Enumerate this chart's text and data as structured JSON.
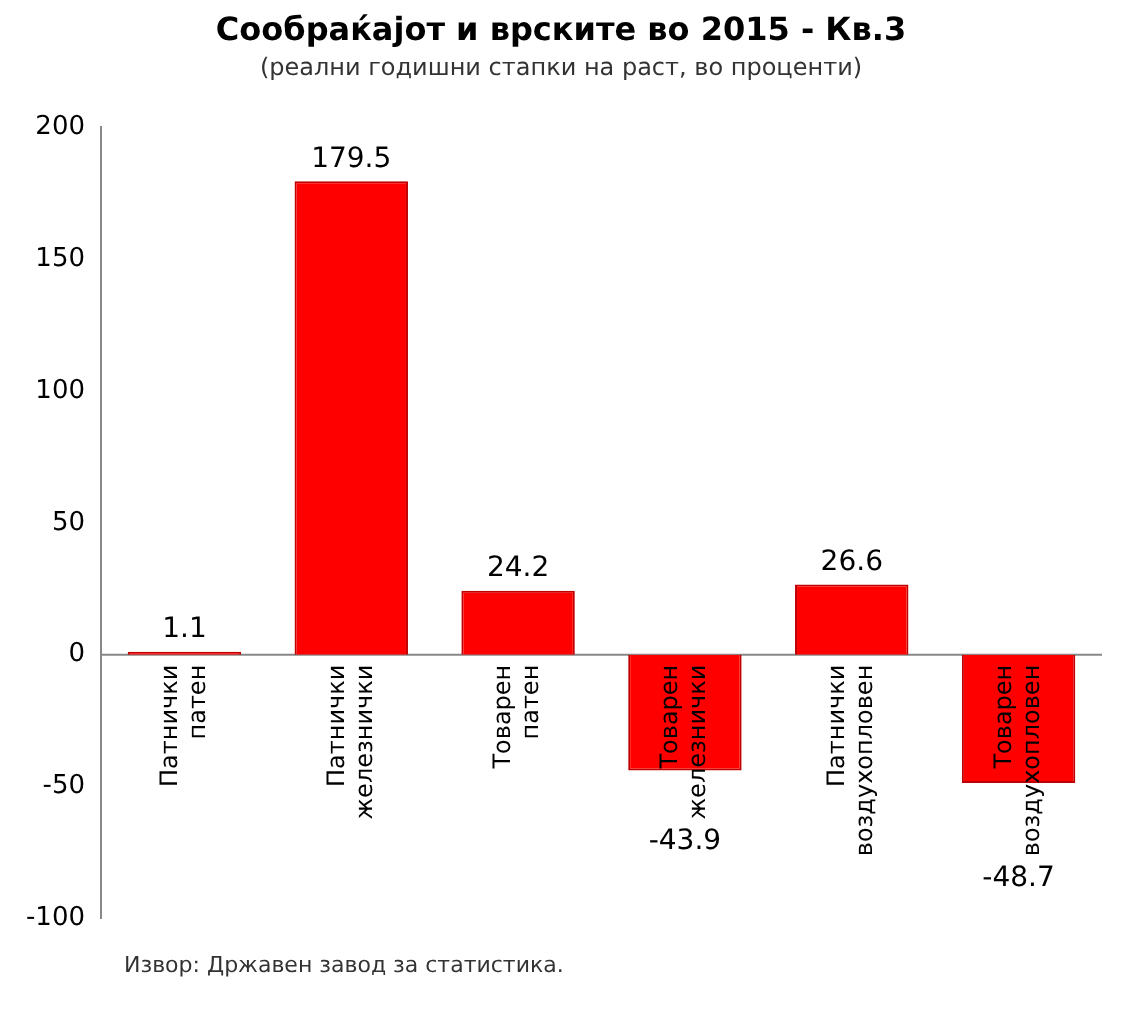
{
  "chart_data": {
    "type": "bar",
    "title": "Сообраќајот и врските во 2015 - Кв.3",
    "subtitle": "(реални годишни стапки на раст, во проценти)",
    "categories": [
      "Патнички патен",
      "Патнички железнички",
      "Товарен патен",
      "Товарен железнички",
      "Патнички воздухопловен",
      "Товарен воздухопловен"
    ],
    "values": [
      1.1,
      179.5,
      24.2,
      -43.9,
      26.6,
      -48.7
    ],
    "color": "#ff0000",
    "ylim": [
      -100,
      200
    ],
    "yticks": [
      -100,
      -50,
      0,
      50,
      100,
      150,
      200
    ],
    "grid": false,
    "legend": false,
    "data_labels": true,
    "annotations": [
      "Извор: Државен завод за статистика."
    ]
  }
}
